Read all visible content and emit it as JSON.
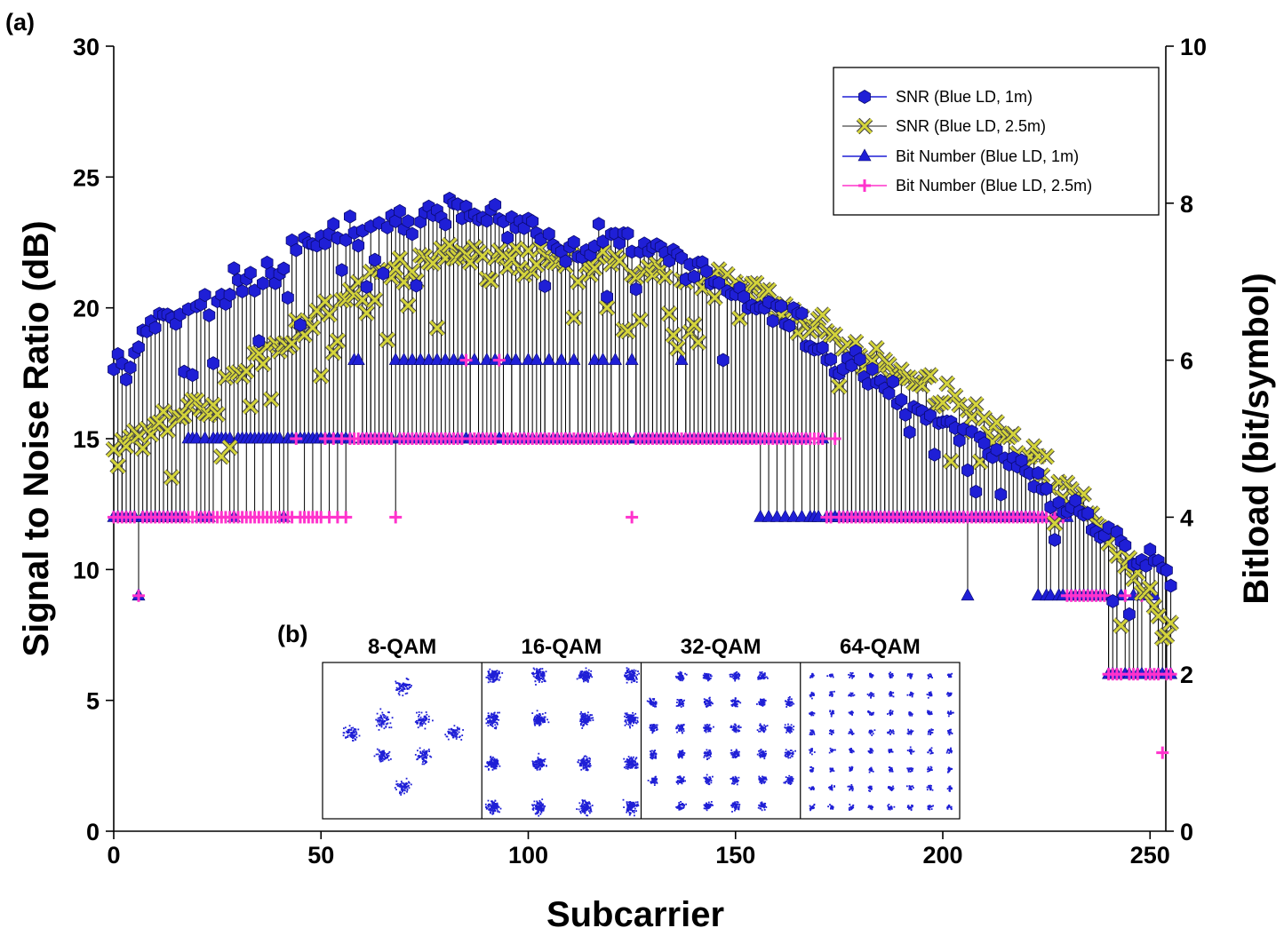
{
  "chart_data": {
    "type": "scatter",
    "panel_labels": {
      "main": "(a)",
      "inset": "(b)"
    },
    "xlabel": "Subcarrier",
    "ylabel_left": "Signal to Noise Ratio (dB)",
    "ylabel_right": "Bitload (bit/symbol)",
    "xlim": [
      -1,
      256
    ],
    "ylim_left": [
      0,
      30
    ],
    "ylim_right": [
      0,
      10
    ],
    "xticks": [
      0,
      50,
      100,
      150,
      200,
      250
    ],
    "yticks_left": [
      0,
      5,
      10,
      15,
      20,
      25,
      30
    ],
    "yticks_right": [
      0,
      2,
      4,
      6,
      8,
      10
    ],
    "legend_position": "top-right",
    "series": [
      {
        "name": "SNR (Blue LD, 1m)",
        "axis": "left",
        "marker": "hexagon",
        "color": "#1f1fd6",
        "kind": "snr",
        "anchors": [
          [
            0,
            18.0
          ],
          [
            3,
            17.5
          ],
          [
            6,
            18.8
          ],
          [
            10,
            19.6
          ],
          [
            15,
            19.6
          ],
          [
            20,
            20.0
          ],
          [
            25,
            20.1
          ],
          [
            30,
            20.8
          ],
          [
            35,
            21.3
          ],
          [
            40,
            21.4
          ],
          [
            45,
            22.3
          ],
          [
            50,
            22.6
          ],
          [
            55,
            23.0
          ],
          [
            60,
            22.8
          ],
          [
            65,
            23.2
          ],
          [
            70,
            23.4
          ],
          [
            75,
            23.6
          ],
          [
            80,
            23.7
          ],
          [
            85,
            23.7
          ],
          [
            90,
            23.5
          ],
          [
            95,
            23.4
          ],
          [
            100,
            23.0
          ],
          [
            105,
            22.6
          ],
          [
            110,
            22.3
          ],
          [
            115,
            22.3
          ],
          [
            120,
            22.8
          ],
          [
            125,
            22.6
          ],
          [
            130,
            22.3
          ],
          [
            135,
            21.8
          ],
          [
            140,
            21.3
          ],
          [
            145,
            20.9
          ],
          [
            150,
            20.7
          ],
          [
            155,
            20.2
          ],
          [
            160,
            20.1
          ],
          [
            165,
            19.5
          ],
          [
            170,
            18.3
          ],
          [
            175,
            18.0
          ],
          [
            180,
            17.6
          ],
          [
            185,
            17.1
          ],
          [
            190,
            16.6
          ],
          [
            195,
            16.1
          ],
          [
            200,
            15.6
          ],
          [
            205,
            15.4
          ],
          [
            210,
            14.6
          ],
          [
            215,
            14.2
          ],
          [
            220,
            13.6
          ],
          [
            225,
            13.0
          ],
          [
            230,
            12.4
          ],
          [
            235,
            12.0
          ],
          [
            240,
            11.3
          ],
          [
            245,
            10.9
          ],
          [
            250,
            10.4
          ],
          [
            254,
            9.7
          ]
        ]
      },
      {
        "name": "SNR (Blue LD, 2.5m)",
        "axis": "left",
        "marker": "x",
        "color": "#d4d43a",
        "kind": "snr",
        "anchors": [
          [
            0,
            14.2
          ],
          [
            5,
            15.0
          ],
          [
            10,
            15.4
          ],
          [
            15,
            16.0
          ],
          [
            20,
            16.3
          ],
          [
            25,
            16.6
          ],
          [
            30,
            17.6
          ],
          [
            35,
            18.2
          ],
          [
            40,
            18.6
          ],
          [
            45,
            19.1
          ],
          [
            50,
            19.7
          ],
          [
            55,
            20.3
          ],
          [
            60,
            20.8
          ],
          [
            65,
            21.3
          ],
          [
            70,
            21.5
          ],
          [
            75,
            21.6
          ],
          [
            80,
            22.0
          ],
          [
            85,
            22.3
          ],
          [
            90,
            21.6
          ],
          [
            95,
            21.6
          ],
          [
            100,
            22.0
          ],
          [
            105,
            22.0
          ],
          [
            110,
            21.8
          ],
          [
            115,
            21.7
          ],
          [
            120,
            21.7
          ],
          [
            125,
            21.6
          ],
          [
            130,
            21.3
          ],
          [
            135,
            21.2
          ],
          [
            140,
            21.1
          ],
          [
            145,
            21.0
          ],
          [
            150,
            20.8
          ],
          [
            155,
            20.6
          ],
          [
            160,
            20.0
          ],
          [
            165,
            19.6
          ],
          [
            170,
            19.3
          ],
          [
            175,
            18.8
          ],
          [
            180,
            18.3
          ],
          [
            185,
            17.9
          ],
          [
            190,
            17.6
          ],
          [
            195,
            17.1
          ],
          [
            200,
            16.6
          ],
          [
            205,
            16.0
          ],
          [
            210,
            15.7
          ],
          [
            215,
            15.0
          ],
          [
            220,
            14.4
          ],
          [
            225,
            13.9
          ],
          [
            230,
            13.0
          ],
          [
            235,
            12.2
          ],
          [
            240,
            11.0
          ],
          [
            245,
            10.2
          ],
          [
            250,
            9.0
          ],
          [
            254,
            7.6
          ]
        ]
      },
      {
        "name": "Bit Number (Blue LD, 1m)",
        "axis": "right",
        "marker": "triangle",
        "color": "#1f1fd6",
        "kind": "bits",
        "segments": [
          [
            0,
            17,
            4
          ],
          [
            18,
            56,
            5
          ],
          [
            57,
            68,
            5
          ],
          [
            69,
            155,
            5
          ],
          [
            156,
            222,
            4
          ],
          [
            223,
            239,
            3
          ],
          [
            240,
            255,
            2
          ]
        ],
        "specials": [
          [
            6,
            3
          ],
          [
            21,
            4
          ],
          [
            23,
            4
          ],
          [
            29,
            4
          ],
          [
            41,
            4
          ],
          [
            58,
            6
          ],
          [
            59,
            6
          ],
          [
            68,
            6
          ],
          [
            70,
            6
          ],
          [
            72,
            6
          ],
          [
            74,
            6
          ],
          [
            76,
            6
          ],
          [
            78,
            6
          ],
          [
            80,
            6
          ],
          [
            82,
            6
          ],
          [
            84,
            6
          ],
          [
            87,
            6
          ],
          [
            90,
            6
          ],
          [
            92,
            6
          ],
          [
            95,
            6
          ],
          [
            97,
            6
          ],
          [
            100,
            6
          ],
          [
            102,
            6
          ],
          [
            105,
            6
          ],
          [
            108,
            6
          ],
          [
            111,
            6
          ],
          [
            116,
            6
          ],
          [
            118,
            6
          ],
          [
            121,
            6
          ],
          [
            125,
            6
          ],
          [
            137,
            6
          ],
          [
            157,
            5
          ],
          [
            159,
            5
          ],
          [
            161,
            5
          ],
          [
            163,
            5
          ],
          [
            165,
            5
          ],
          [
            167,
            5
          ],
          [
            171,
            5
          ],
          [
            206,
            3
          ],
          [
            220,
            4
          ],
          [
            224,
            4
          ],
          [
            227,
            4
          ],
          [
            230,
            4
          ],
          [
            243,
            3
          ],
          [
            246,
            3
          ],
          [
            249,
            3
          ],
          [
            251,
            3
          ]
        ]
      },
      {
        "name": "Bit Number (Blue LD, 2.5m)",
        "axis": "right",
        "marker": "plus",
        "color": "#ff33cc",
        "kind": "bits",
        "segments": [
          [
            0,
            50,
            4
          ],
          [
            51,
            56,
            4
          ],
          [
            57,
            171,
            5
          ],
          [
            172,
            228,
            4
          ],
          [
            229,
            239,
            3
          ],
          [
            240,
            255,
            2
          ]
        ],
        "specials": [
          [
            6,
            3
          ],
          [
            44,
            5
          ],
          [
            51,
            5
          ],
          [
            53,
            5
          ],
          [
            55,
            5
          ],
          [
            68,
            4
          ],
          [
            85,
            6
          ],
          [
            93,
            6
          ],
          [
            125,
            4
          ],
          [
            158,
            5
          ],
          [
            160,
            5
          ],
          [
            162,
            5
          ],
          [
            174,
            5
          ],
          [
            226,
            4
          ],
          [
            229,
            4
          ],
          [
            244,
            3
          ],
          [
            248,
            3
          ],
          [
            253,
            1
          ]
        ]
      }
    ],
    "inset": {
      "color": "#1f1fd6",
      "panels": [
        {
          "title": "8-QAM",
          "kind": "8qam"
        },
        {
          "title": "16-QAM",
          "kind": "grid",
          "n": 4
        },
        {
          "title": "32-QAM",
          "kind": "cross32"
        },
        {
          "title": "64-QAM",
          "kind": "grid",
          "n": 8
        }
      ]
    }
  }
}
